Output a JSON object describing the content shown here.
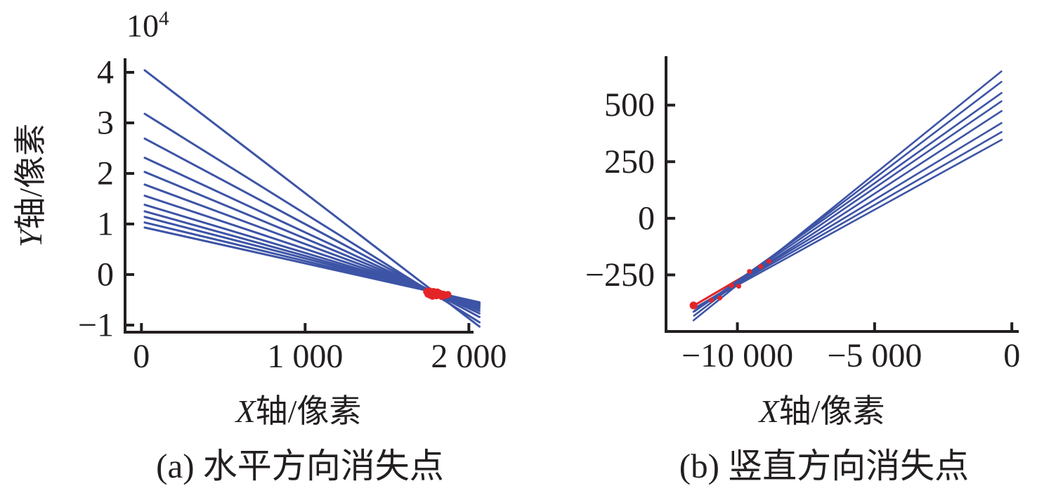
{
  "figure_caption_a": "(a) 水平方向消失点",
  "figure_caption_b": "(b) 竖直方向消失点",
  "colors": {
    "line_blue": "#3d54a6",
    "marker_red": "#e42528",
    "axis_black": "#231f20"
  },
  "chart_data": [
    {
      "type": "line",
      "panel": "a",
      "caption": "(a) 水平方向消失点",
      "xlabel": "X轴/像素",
      "xlabel_prefix": "X",
      "xlabel_suffix": "轴/像素",
      "ylabel": "Y轴/像素",
      "ylabel_prefix": "Y",
      "ylabel_suffix": "轴/像素",
      "y_multiplier": {
        "base": "10",
        "exponent": "4"
      },
      "xlim": [
        -100,
        2020
      ],
      "ylim": [
        -11400,
        42500
      ],
      "x_ticks": [
        {
          "value": 0,
          "label": "0"
        },
        {
          "value": 1000,
          "label": "1 000"
        },
        {
          "value": 2000,
          "label": "2 000"
        }
      ],
      "y_ticks": [
        {
          "value": 40000,
          "label": "4"
        },
        {
          "value": 30000,
          "label": "3"
        },
        {
          "value": 20000,
          "label": "2"
        },
        {
          "value": 10000,
          "label": "1"
        },
        {
          "value": 0,
          "label": "0"
        },
        {
          "value": -10000,
          "label": "−1"
        }
      ],
      "grid": false,
      "legend": null,
      "series": [
        {
          "name": "edge-line-1",
          "points": [
            [
              20,
              40400
            ],
            [
              2065,
              -10300
            ]
          ]
        },
        {
          "name": "edge-line-2",
          "points": [
            [
              20,
              31800
            ],
            [
              2065,
              -9448
            ]
          ]
        },
        {
          "name": "edge-line-3",
          "points": [
            [
              20,
              26900
            ],
            [
              2065,
              -8398
            ]
          ]
        },
        {
          "name": "edge-line-4",
          "points": [
            [
              20,
              23100
            ],
            [
              2065,
              -7690
            ]
          ]
        },
        {
          "name": "edge-line-5",
          "points": [
            [
              20,
              20300
            ],
            [
              2065,
              -7177
            ]
          ]
        },
        {
          "name": "edge-line-6",
          "points": [
            [
              20,
              17800
            ],
            [
              2065,
              -6740
            ]
          ]
        },
        {
          "name": "edge-line-7",
          "points": [
            [
              20,
              15600
            ],
            [
              2065,
              -6349
            ]
          ]
        },
        {
          "name": "edge-line-8",
          "points": [
            [
              20,
              13800
            ],
            [
              2065,
              -6063
            ]
          ]
        },
        {
          "name": "edge-line-9",
          "points": [
            [
              20,
              12500
            ],
            [
              2065,
              -5871
            ]
          ]
        },
        {
          "name": "edge-line-10",
          "points": [
            [
              20,
              11400
            ],
            [
              2065,
              -5723
            ]
          ]
        },
        {
          "name": "edge-line-11",
          "points": [
            [
              20,
              10300
            ],
            [
              2065,
              -5610
            ]
          ]
        },
        {
          "name": "edge-line-12",
          "points": [
            [
              20,
              9300
            ],
            [
              2065,
              -5490
            ]
          ]
        }
      ],
      "vanishing_points": [
        [
          1742,
          -3400
        ],
        [
          1750,
          -3900
        ],
        [
          1758,
          -3200
        ],
        [
          1764,
          -4100
        ],
        [
          1770,
          -3550
        ],
        [
          1778,
          -4300
        ],
        [
          1784,
          -3350
        ],
        [
          1790,
          -3950
        ],
        [
          1796,
          -3600
        ],
        [
          1802,
          -4200
        ],
        [
          1808,
          -3450
        ],
        [
          1816,
          -3980
        ],
        [
          1824,
          -3700
        ],
        [
          1834,
          -4350
        ],
        [
          1846,
          -3900
        ],
        [
          1860,
          -4100
        ],
        [
          1872,
          -3950
        ]
      ],
      "marker_radius": 5
    },
    {
      "type": "line",
      "panel": "b",
      "caption": "(b) 竖直方向消失点",
      "xlabel": "X轴/像素",
      "xlabel_prefix": "X",
      "xlabel_suffix": "轴/像素",
      "ylabel": null,
      "xlim": [
        -12600,
        200
      ],
      "ylim": [
        -500,
        710
      ],
      "x_ticks": [
        {
          "value": -10000,
          "label": "−10 000"
        },
        {
          "value": -5000,
          "label": "−5 000"
        },
        {
          "value": 0,
          "label": "0"
        }
      ],
      "y_ticks": [
        {
          "value": 500,
          "label": "500"
        },
        {
          "value": 250,
          "label": "250"
        },
        {
          "value": 0,
          "label": "0"
        },
        {
          "value": -250,
          "label": "−250"
        }
      ],
      "grid": false,
      "legend": null,
      "red_line": [
        [
          -11620,
          -388
        ],
        [
          -8800,
          -188
        ]
      ],
      "series": [
        {
          "name": "edge-line-1",
          "points": [
            [
              -11600,
              -451
            ],
            [
              -380,
              649
            ]
          ]
        },
        {
          "name": "edge-line-2",
          "points": [
            [
              -11580,
              -430
            ],
            [
              -380,
              603
            ]
          ]
        },
        {
          "name": "edge-line-3",
          "points": [
            [
              -11560,
              -411
            ],
            [
              -375,
              554
            ]
          ]
        },
        {
          "name": "edge-line-4",
          "points": [
            [
              -11600,
              -413
            ],
            [
              -378,
              517
            ]
          ]
        },
        {
          "name": "edge-line-5",
          "points": [
            [
              -11560,
              -408
            ],
            [
              -372,
              474
            ]
          ]
        },
        {
          "name": "edge-line-6",
          "points": [
            [
              -11500,
              -394
            ],
            [
              -376,
              421
            ]
          ]
        },
        {
          "name": "edge-line-7",
          "points": [
            [
              -11450,
              -389
            ],
            [
              -374,
              381
            ]
          ]
        },
        {
          "name": "edge-line-8",
          "points": [
            [
              -11400,
              -389
            ],
            [
              -370,
              347
            ]
          ]
        }
      ],
      "vanishing_points": [
        [
          -11600,
          -385
        ],
        [
          -10950,
          -362
        ],
        [
          -10640,
          -352
        ],
        [
          -10210,
          -297
        ],
        [
          -9950,
          -300
        ],
        [
          -9560,
          -235
        ],
        [
          -9150,
          -213
        ],
        [
          -8850,
          -190
        ]
      ],
      "marker_radius": 3.5,
      "big_marker": {
        "point": [
          -11600,
          -385
        ],
        "radius": 5.5
      }
    }
  ]
}
